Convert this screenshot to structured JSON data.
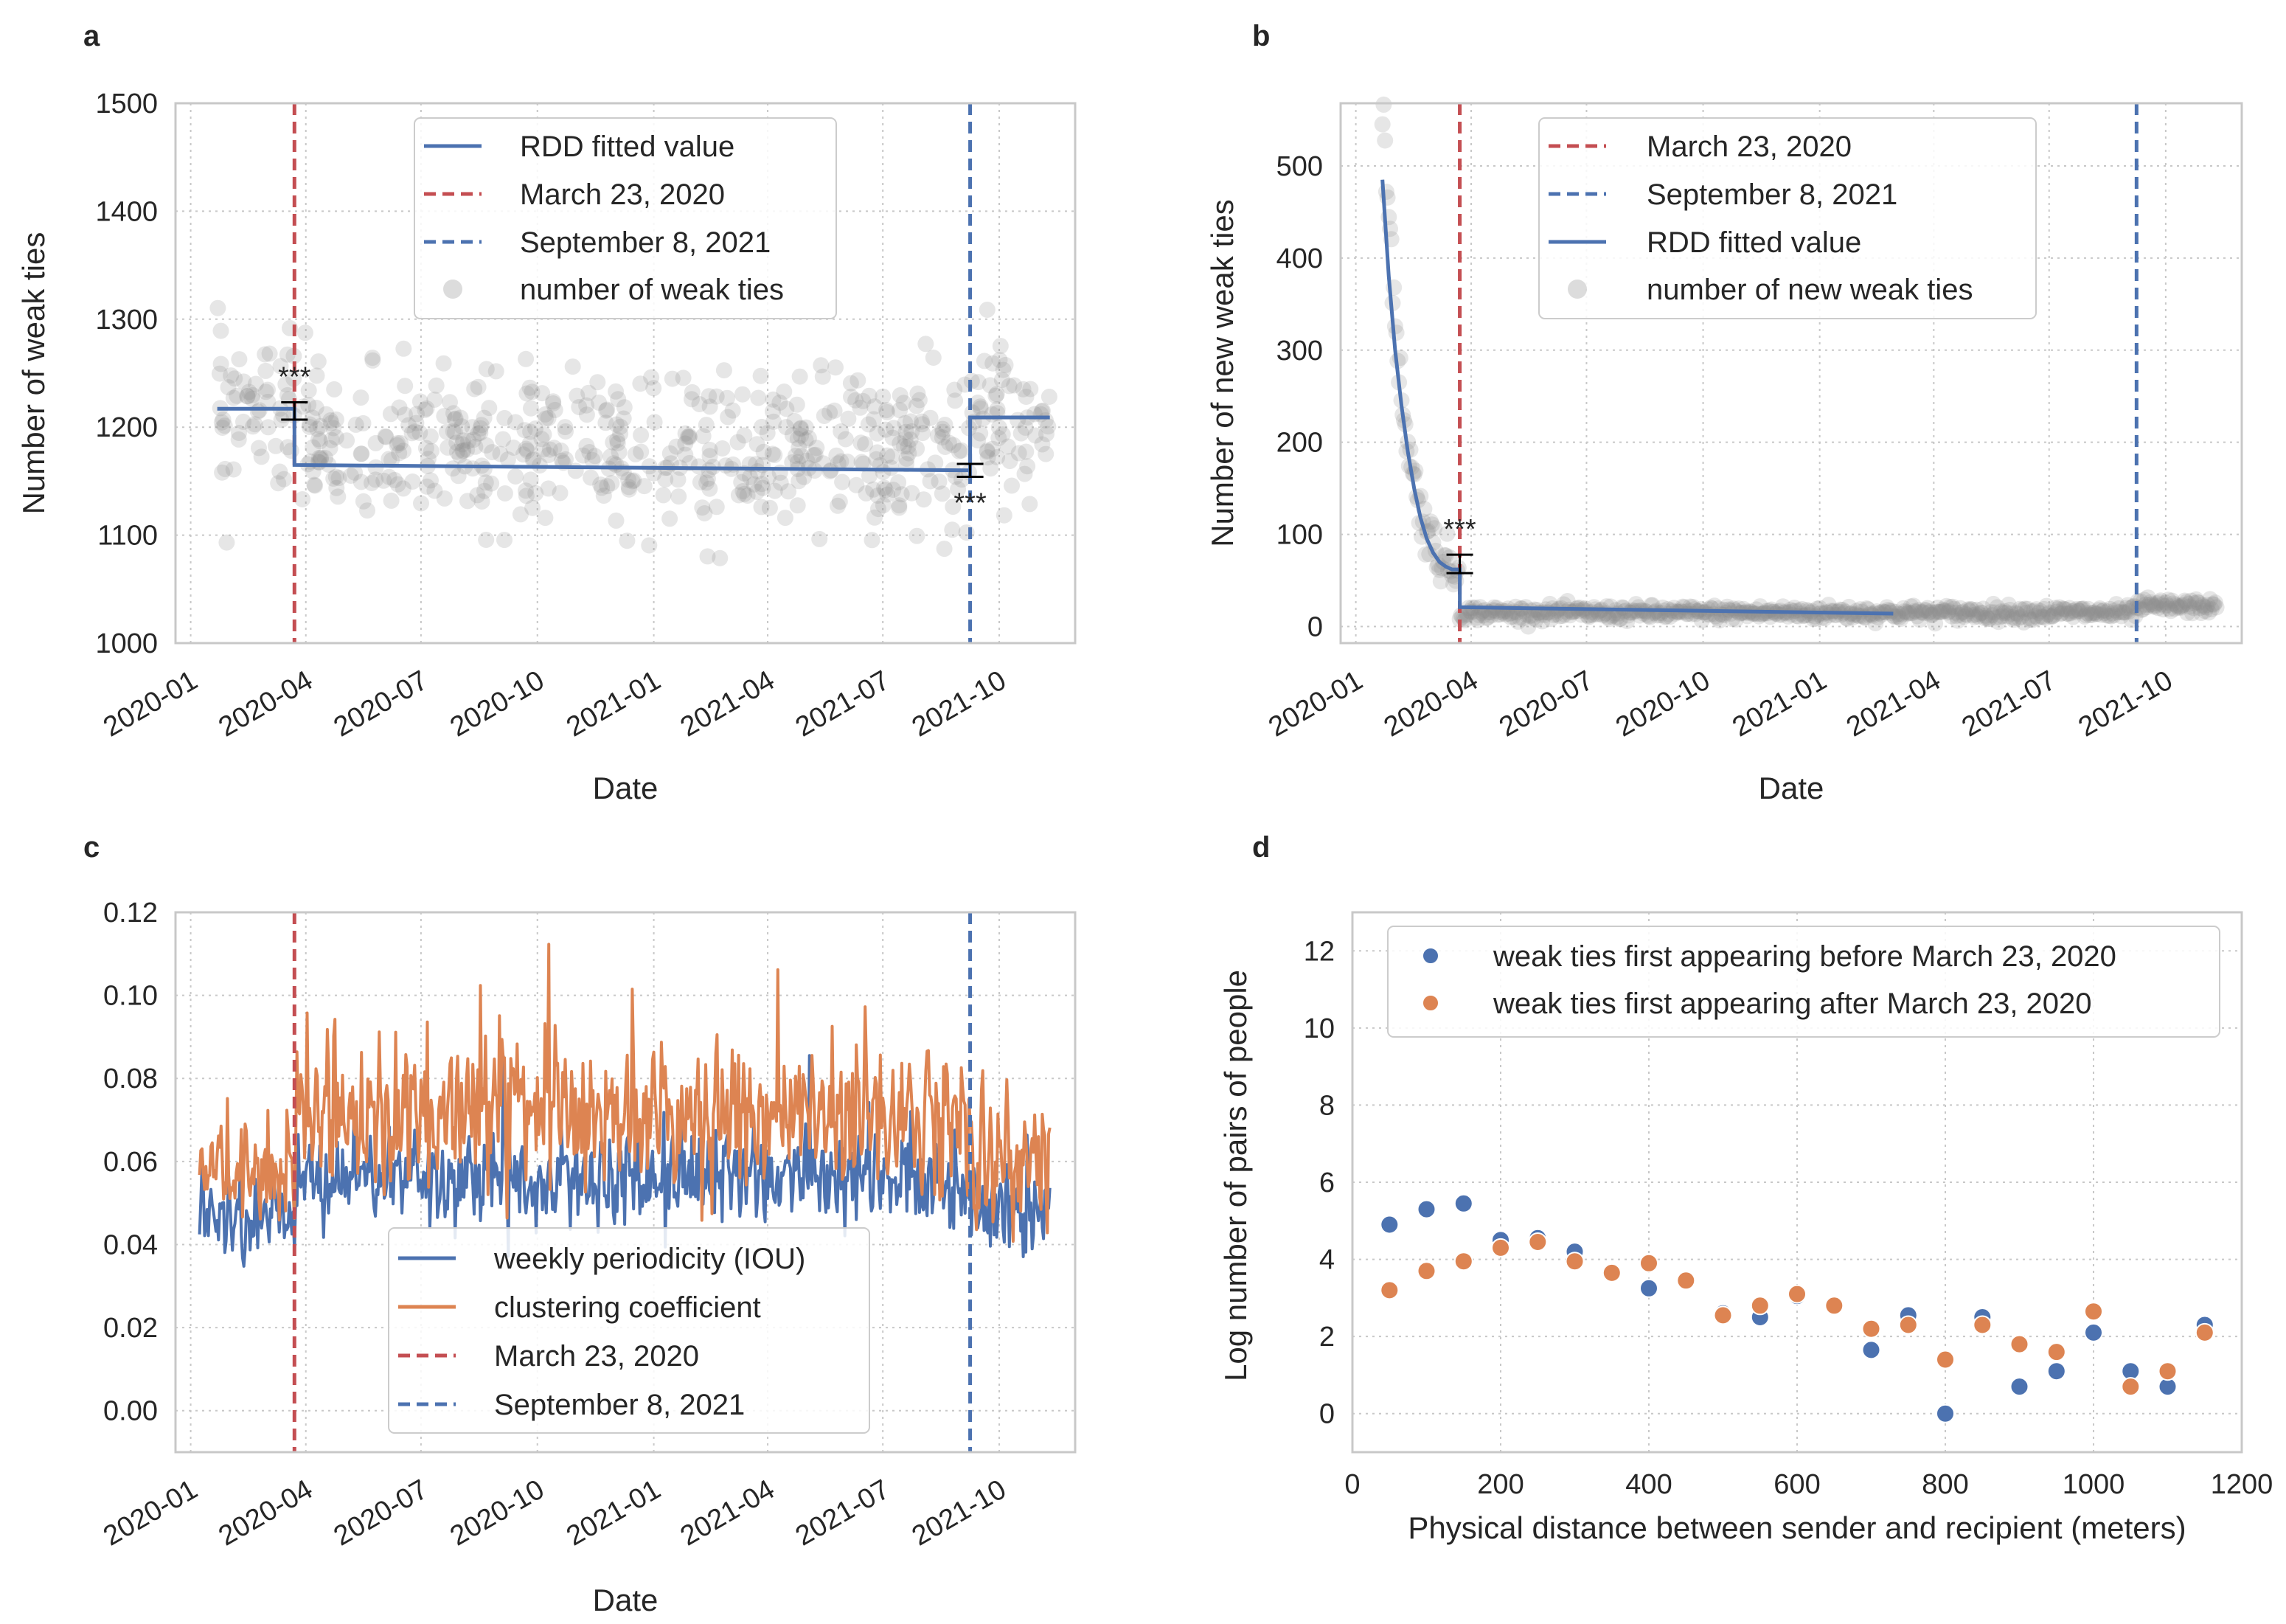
{
  "colors": {
    "blue": "#4c72b0",
    "orange": "#dd8452",
    "red": "#c44e52",
    "scatter_grey": "#8c8c8c",
    "grid": "#c8c8c8",
    "frame": "#c8c8c8",
    "text": "#262626"
  },
  "chart_data": [
    {
      "panel": "a",
      "type": "scatter",
      "xlabel": "Date",
      "ylabel": "Number of weak ties",
      "x_axis": "date",
      "xlim": [
        "2019-12-20",
        "2021-11-30"
      ],
      "ylim": [
        1000,
        1500
      ],
      "xticks": [
        "2020-01",
        "2020-04",
        "2020-07",
        "2020-10",
        "2021-01",
        "2021-04",
        "2021-07",
        "2021-10"
      ],
      "yticks": [
        1000,
        1100,
        1200,
        1300,
        1400,
        1500
      ],
      "grid": true,
      "legend_placement": "top-center",
      "legend": [
        "RDD fitted value",
        "March 23, 2020",
        "September 8, 2021",
        "number of weak ties"
      ],
      "scatter": {
        "name": "number of weak ties",
        "x_range": [
          "2020-01-22",
          "2021-11-10"
        ],
        "mean": 1180,
        "spread": 35,
        "count": 620
      },
      "fit_segments": [
        {
          "x": [
            "2020-01-22",
            "2020-03-23"
          ],
          "y": [
            1217,
            1217
          ]
        },
        {
          "x": [
            "2020-03-23",
            "2021-09-08"
          ],
          "y": [
            1165,
            1160
          ]
        },
        {
          "x": [
            "2021-09-08",
            "2021-11-10"
          ],
          "y": [
            1209,
            1209
          ]
        }
      ],
      "error_bars": [
        {
          "x": "2020-03-23",
          "y": 1215,
          "low": 1207,
          "high": 1223,
          "label": "***",
          "label_position": "above"
        },
        {
          "x": "2021-09-08",
          "y": 1160,
          "low": 1154,
          "high": 1166,
          "label": "***",
          "label_position": "below"
        }
      ],
      "vlines": [
        {
          "x": "2020-03-23",
          "color": "red",
          "name": "March 23, 2020"
        },
        {
          "x": "2021-09-08",
          "color": "blue",
          "name": "September 8, 2021"
        }
      ]
    },
    {
      "panel": "b",
      "type": "scatter",
      "xlabel": "Date",
      "ylabel": "Number of new weak ties",
      "x_axis": "date",
      "xlim": [
        "2019-12-20",
        "2021-11-30"
      ],
      "ylim": [
        -18,
        568
      ],
      "xticks": [
        "2020-01",
        "2020-04",
        "2020-07",
        "2020-10",
        "2021-01",
        "2021-04",
        "2021-07",
        "2021-10"
      ],
      "yticks": [
        0,
        100,
        200,
        300,
        400,
        500
      ],
      "grid": true,
      "legend_placement": "top-center",
      "legend": [
        "March 23, 2020",
        "September 8, 2021",
        "RDD fitted value",
        "number of new weak ties"
      ],
      "scatter": {
        "name": "number of new weak ties",
        "x_range": [
          "2020-01-22",
          "2021-11-10"
        ],
        "decay_start": 540,
        "decay_days": 16,
        "baseline": 15,
        "post_sept_level": 22
      },
      "fit_curve": {
        "x": [
          "2020-01-22",
          "2020-01-27",
          "2020-02-01",
          "2020-02-06",
          "2020-02-11",
          "2020-02-16",
          "2020-02-21",
          "2020-02-26",
          "2020-03-02",
          "2020-03-07",
          "2020-03-12",
          "2020-03-17",
          "2020-03-23"
        ],
        "y": [
          485,
          380,
          300,
          240,
          190,
          150,
          118,
          95,
          80,
          70,
          65,
          62,
          62
        ]
      },
      "fit_after": {
        "x": [
          "2020-03-23",
          "2021-02-28"
        ],
        "y": [
          21,
          14
        ]
      },
      "error_bars": [
        {
          "x": "2020-03-23",
          "y": 68,
          "low": 58,
          "high": 78,
          "label": "***",
          "label_position": "above"
        }
      ],
      "vlines": [
        {
          "x": "2020-03-23",
          "color": "red",
          "name": "March 23, 2020"
        },
        {
          "x": "2021-09-08",
          "color": "blue",
          "name": "September 8, 2021"
        }
      ]
    },
    {
      "panel": "c",
      "type": "line",
      "xlabel": "Date",
      "ylabel": "",
      "x_axis": "date",
      "xlim": [
        "2019-12-20",
        "2021-11-30"
      ],
      "ylim": [
        -0.01,
        0.12
      ],
      "xticks": [
        "2020-01",
        "2020-04",
        "2020-07",
        "2020-10",
        "2021-01",
        "2021-04",
        "2021-07",
        "2021-10"
      ],
      "yticks": [
        "0.00",
        "0.02",
        "0.04",
        "0.06",
        "0.08",
        "0.10",
        "0.12"
      ],
      "grid": true,
      "legend_placement": "lower-center",
      "legend": [
        "weekly periodicity (IOU)",
        "clustering coefficient",
        "March 23, 2020",
        "September 8, 2021"
      ],
      "series": [
        {
          "name": "weekly periodicity (IOU)",
          "color": "blue",
          "x_range": [
            "2020-01-08",
            "2021-11-10"
          ],
          "levels": [
            {
              "to": "2020-03-23",
              "mean": 0.047,
              "amp": 0.006
            },
            {
              "to": "2021-09-08",
              "mean": 0.056,
              "amp": 0.007
            },
            {
              "to": "2021-11-10",
              "mean": 0.048,
              "amp": 0.007
            }
          ]
        },
        {
          "name": "clustering coefficient",
          "color": "orange",
          "x_range": [
            "2020-01-08",
            "2021-11-10"
          ],
          "levels": [
            {
              "to": "2020-03-23",
              "mean": 0.058,
              "amp": 0.008
            },
            {
              "to": "2021-09-08",
              "mean": 0.071,
              "amp": 0.011
            },
            {
              "to": "2021-11-10",
              "mean": 0.06,
              "amp": 0.01
            }
          ]
        }
      ],
      "vlines": [
        {
          "x": "2020-03-23",
          "color": "red",
          "name": "March 23, 2020"
        },
        {
          "x": "2021-09-08",
          "color": "blue",
          "name": "September 8, 2021"
        }
      ]
    },
    {
      "panel": "d",
      "type": "scatter",
      "xlabel": "Physical distance between sender and recipient (meters)",
      "ylabel": "Log number of pairs of people",
      "xlim": [
        0,
        1200
      ],
      "ylim": [
        -1,
        13
      ],
      "xticks": [
        0,
        200,
        400,
        600,
        800,
        1000,
        1200
      ],
      "yticks": [
        0,
        2,
        4,
        6,
        8,
        10,
        12
      ],
      "grid": true,
      "legend_placement": "top-right",
      "series": [
        {
          "name": "weak ties first appearing before March 23, 2020",
          "color": "blue",
          "x": [
            50,
            100,
            150,
            200,
            250,
            300,
            400,
            500,
            550,
            600,
            650,
            700,
            750,
            800,
            850,
            900,
            950,
            1000,
            1050,
            1100,
            1150
          ],
          "y": [
            4.9,
            5.3,
            5.45,
            4.5,
            4.55,
            4.2,
            3.25,
            2.6,
            2.5,
            3.05,
            2.8,
            1.65,
            2.55,
            0.0,
            2.5,
            0.7,
            1.1,
            2.1,
            1.1,
            0.7,
            2.3
          ]
        },
        {
          "name": "weak ties first appearing after March 23, 2020",
          "color": "orange",
          "x": [
            50,
            100,
            150,
            200,
            250,
            300,
            350,
            400,
            450,
            500,
            550,
            600,
            650,
            700,
            750,
            800,
            850,
            900,
            950,
            1000,
            1050,
            1100,
            1150
          ],
          "y": [
            3.2,
            3.7,
            3.95,
            4.3,
            4.45,
            3.95,
            3.65,
            3.9,
            3.45,
            2.55,
            2.8,
            3.1,
            2.8,
            2.2,
            2.3,
            1.4,
            2.3,
            1.8,
            1.6,
            2.65,
            0.7,
            1.1,
            2.1
          ]
        }
      ]
    }
  ]
}
